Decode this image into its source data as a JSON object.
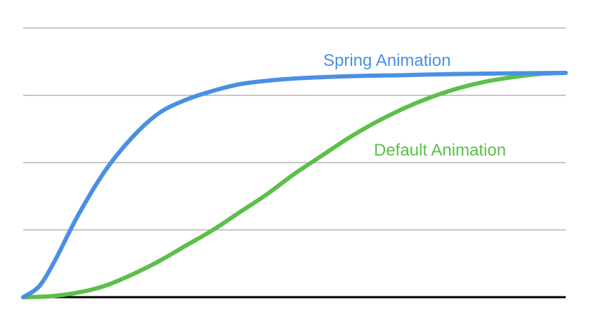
{
  "chart_data": {
    "type": "line",
    "title": "",
    "xlabel": "",
    "ylabel": "",
    "xlim": [
      0,
      1
    ],
    "ylim": [
      0,
      1.0
    ],
    "grid": true,
    "yticks": [
      0,
      0.3,
      0.6,
      0.9,
      1.2
    ],
    "series": [
      {
        "name": "Spring Animation",
        "color": "#4a90e2",
        "x": [
          0,
          0.03,
          0.06,
          0.1,
          0.15,
          0.2,
          0.25,
          0.3,
          0.35,
          0.4,
          0.45,
          0.5,
          0.6,
          0.7,
          0.8,
          0.9,
          1.0
        ],
        "y": [
          0,
          0.05,
          0.17,
          0.36,
          0.56,
          0.71,
          0.82,
          0.88,
          0.92,
          0.95,
          0.965,
          0.975,
          0.985,
          0.99,
          0.995,
          0.998,
          1.0
        ]
      },
      {
        "name": "Default Animation",
        "color": "#5cbf4a",
        "x": [
          0,
          0.05,
          0.1,
          0.15,
          0.2,
          0.25,
          0.3,
          0.35,
          0.4,
          0.45,
          0.5,
          0.55,
          0.6,
          0.65,
          0.7,
          0.75,
          0.8,
          0.85,
          0.9,
          0.95,
          1.0
        ],
        "y": [
          0,
          0.004,
          0.02,
          0.05,
          0.1,
          0.16,
          0.23,
          0.3,
          0.38,
          0.46,
          0.55,
          0.63,
          0.71,
          0.78,
          0.84,
          0.89,
          0.93,
          0.96,
          0.98,
          0.995,
          1.0
        ]
      }
    ]
  }
}
